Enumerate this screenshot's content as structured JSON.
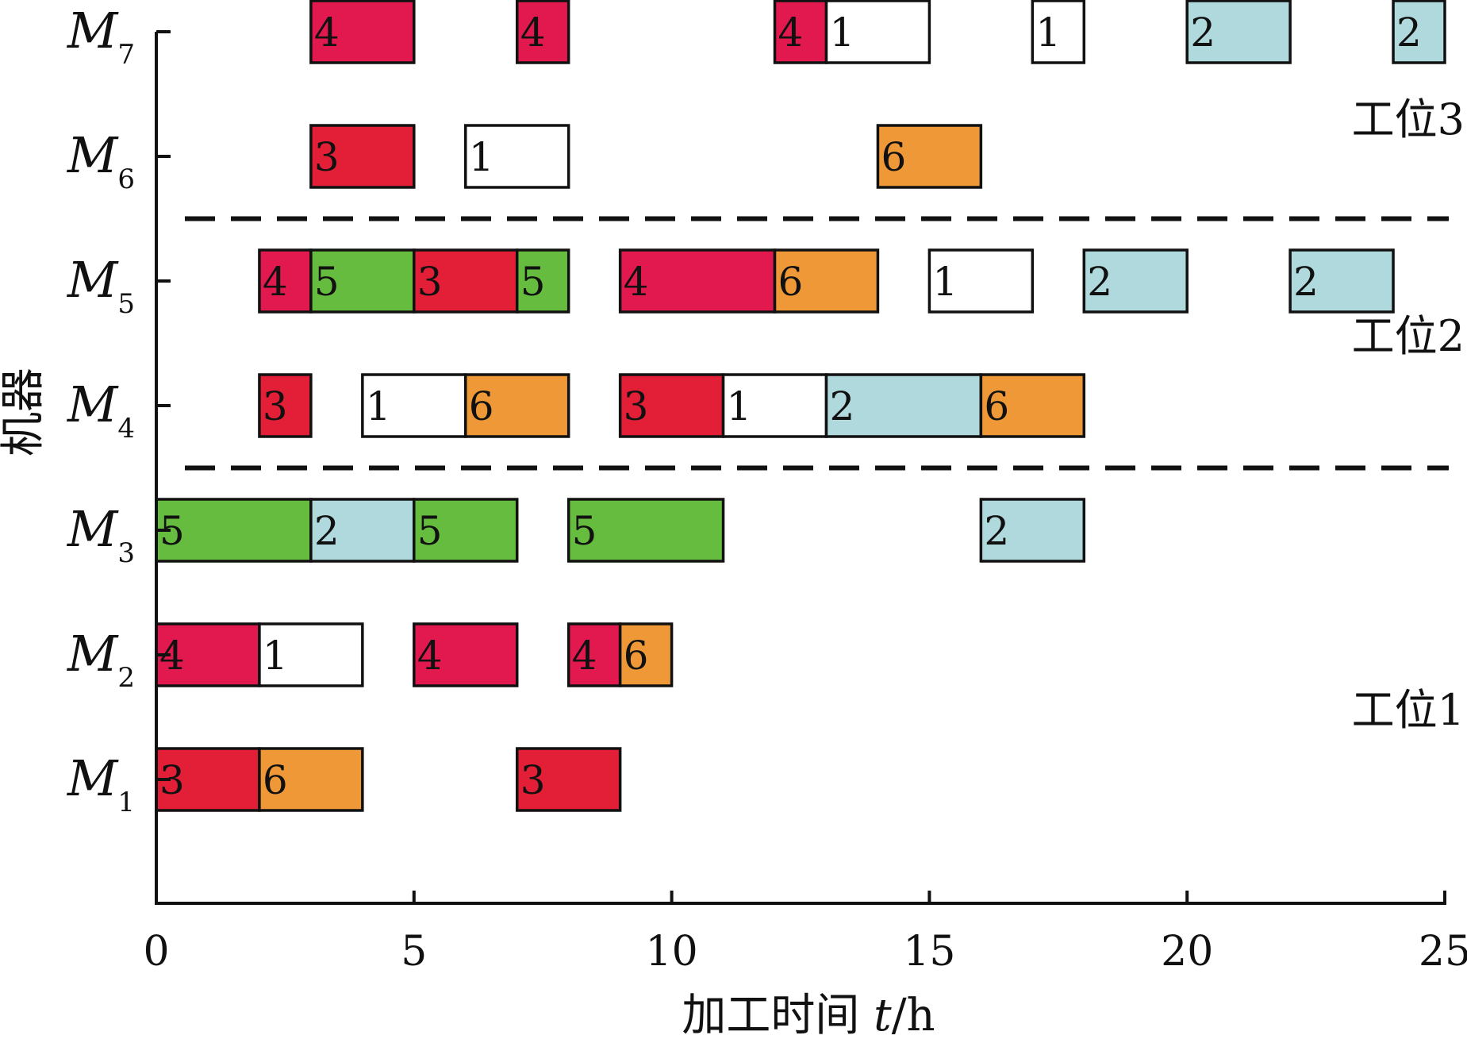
{
  "chart_data": {
    "type": "gantt",
    "xlabel": "加工时间 t/h",
    "xlabel_parts": {
      "text": "加工时间 ",
      "var": "t",
      "unit": "/h"
    },
    "ylabel": "机器",
    "xlim": [
      0,
      25
    ],
    "xticks": [
      0,
      5,
      10,
      15,
      20,
      25
    ],
    "machines": [
      {
        "id": "M1",
        "letter": "M",
        "sub": "1"
      },
      {
        "id": "M2",
        "letter": "M",
        "sub": "2"
      },
      {
        "id": "M3",
        "letter": "M",
        "sub": "3"
      },
      {
        "id": "M4",
        "letter": "M",
        "sub": "4"
      },
      {
        "id": "M5",
        "letter": "M",
        "sub": "5"
      },
      {
        "id": "M6",
        "letter": "M",
        "sub": "6"
      },
      {
        "id": "M7",
        "letter": "M",
        "sub": "7"
      }
    ],
    "job_colors": {
      "1": "#ffffff",
      "2": "#afd9dc",
      "3": "#e21f36",
      "4": "#e2194e",
      "5": "#66bc3f",
      "6": "#ee9837"
    },
    "tasks": [
      {
        "machine": "M1",
        "job": "3",
        "start": 0,
        "end": 2
      },
      {
        "machine": "M1",
        "job": "6",
        "start": 2,
        "end": 4
      },
      {
        "machine": "M1",
        "job": "3",
        "start": 7,
        "end": 9
      },
      {
        "machine": "M2",
        "job": "4",
        "start": 0,
        "end": 2
      },
      {
        "machine": "M2",
        "job": "1",
        "start": 2,
        "end": 4
      },
      {
        "machine": "M2",
        "job": "4",
        "start": 5,
        "end": 7
      },
      {
        "machine": "M2",
        "job": "4",
        "start": 8,
        "end": 9
      },
      {
        "machine": "M2",
        "job": "6",
        "start": 9,
        "end": 10
      },
      {
        "machine": "M3",
        "job": "5",
        "start": 0,
        "end": 3
      },
      {
        "machine": "M3",
        "job": "2",
        "start": 3,
        "end": 5
      },
      {
        "machine": "M3",
        "job": "5",
        "start": 5,
        "end": 7
      },
      {
        "machine": "M3",
        "job": "5",
        "start": 8,
        "end": 11
      },
      {
        "machine": "M3",
        "job": "2",
        "start": 16,
        "end": 18
      },
      {
        "machine": "M4",
        "job": "3",
        "start": 2,
        "end": 3
      },
      {
        "machine": "M4",
        "job": "1",
        "start": 4,
        "end": 6
      },
      {
        "machine": "M4",
        "job": "6",
        "start": 6,
        "end": 8
      },
      {
        "machine": "M4",
        "job": "3",
        "start": 9,
        "end": 11
      },
      {
        "machine": "M4",
        "job": "1",
        "start": 11,
        "end": 13
      },
      {
        "machine": "M4",
        "job": "2",
        "start": 13,
        "end": 16
      },
      {
        "machine": "M4",
        "job": "6",
        "start": 16,
        "end": 18
      },
      {
        "machine": "M5",
        "job": "4",
        "start": 2,
        "end": 3
      },
      {
        "machine": "M5",
        "job": "5",
        "start": 3,
        "end": 5
      },
      {
        "machine": "M5",
        "job": "3",
        "start": 5,
        "end": 7
      },
      {
        "machine": "M5",
        "job": "5",
        "start": 7,
        "end": 8
      },
      {
        "machine": "M5",
        "job": "4",
        "start": 9,
        "end": 12
      },
      {
        "machine": "M5",
        "job": "6",
        "start": 12,
        "end": 14
      },
      {
        "machine": "M5",
        "job": "1",
        "start": 15,
        "end": 17
      },
      {
        "machine": "M5",
        "job": "2",
        "start": 18,
        "end": 20
      },
      {
        "machine": "M5",
        "job": "2",
        "start": 22,
        "end": 24
      },
      {
        "machine": "M6",
        "job": "3",
        "start": 3,
        "end": 5
      },
      {
        "machine": "M6",
        "job": "1",
        "start": 6,
        "end": 8
      },
      {
        "machine": "M6",
        "job": "6",
        "start": 14,
        "end": 16
      },
      {
        "machine": "M7",
        "job": "4",
        "start": 3,
        "end": 5
      },
      {
        "machine": "M7",
        "job": "4",
        "start": 7,
        "end": 8
      },
      {
        "machine": "M7",
        "job": "4",
        "start": 12,
        "end": 13
      },
      {
        "machine": "M7",
        "job": "1",
        "start": 13,
        "end": 15
      },
      {
        "machine": "M7",
        "job": "1",
        "start": 17,
        "end": 18
      },
      {
        "machine": "M7",
        "job": "2",
        "start": 20,
        "end": 22
      },
      {
        "machine": "M7",
        "job": "2",
        "start": 24,
        "end": 25
      }
    ],
    "stations": [
      {
        "label": "工位1",
        "machines": [
          "M1",
          "M2",
          "M3"
        ]
      },
      {
        "label": "工位2",
        "machines": [
          "M4",
          "M5"
        ]
      },
      {
        "label": "工位3",
        "machines": [
          "M6",
          "M7"
        ]
      }
    ],
    "dividers": [
      "between-M3-M4",
      "between-M5-M6"
    ]
  }
}
